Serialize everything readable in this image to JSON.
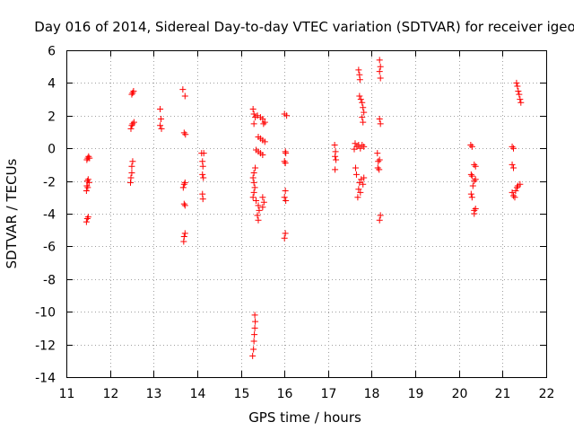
{
  "chart_data": {
    "type": "scatter",
    "title": "Day 016 of 2014, Sidereal Day-to-day VTEC variation (SDTVAR) for receiver igeo",
    "xlabel": "GPS time / hours",
    "ylabel": "SDTVAR / TECUs",
    "xlim": [
      11,
      22
    ],
    "ylim": [
      -14,
      6
    ],
    "xticks": [
      11,
      12,
      13,
      14,
      15,
      16,
      17,
      18,
      19,
      20,
      21,
      22
    ],
    "yticks": [
      -14,
      -12,
      -10,
      -8,
      -6,
      -4,
      -2,
      0,
      2,
      4,
      6
    ],
    "grid": true,
    "marker": "plus",
    "color": "#ff0000",
    "series": [
      {
        "name": "SDTVAR",
        "points": [
          [
            11.47,
            -0.7
          ],
          [
            11.49,
            -0.6
          ],
          [
            11.51,
            -0.5
          ],
          [
            11.53,
            -0.6
          ],
          [
            11.48,
            -2.0
          ],
          [
            11.5,
            -1.9
          ],
          [
            11.52,
            -2.1
          ],
          [
            11.47,
            -2.3
          ],
          [
            11.49,
            -2.4
          ],
          [
            11.46,
            -2.6
          ],
          [
            11.48,
            -4.3
          ],
          [
            11.5,
            -4.2
          ],
          [
            11.46,
            -4.5
          ],
          [
            12.5,
            3.3
          ],
          [
            12.52,
            3.4
          ],
          [
            12.54,
            3.5
          ],
          [
            12.5,
            1.4
          ],
          [
            12.52,
            1.5
          ],
          [
            12.55,
            1.6
          ],
          [
            12.48,
            1.2
          ],
          [
            12.52,
            -0.8
          ],
          [
            12.5,
            -1.1
          ],
          [
            12.5,
            -1.5
          ],
          [
            12.48,
            -1.8
          ],
          [
            12.47,
            -2.1
          ],
          [
            13.15,
            2.4
          ],
          [
            13.17,
            1.8
          ],
          [
            13.15,
            1.4
          ],
          [
            13.18,
            1.2
          ],
          [
            13.67,
            3.6
          ],
          [
            13.72,
            3.2
          ],
          [
            13.7,
            0.95
          ],
          [
            13.73,
            0.85
          ],
          [
            13.7,
            -2.2
          ],
          [
            13.72,
            -2.1
          ],
          [
            13.68,
            -2.4
          ],
          [
            13.7,
            -3.4
          ],
          [
            13.72,
            -3.5
          ],
          [
            13.72,
            -5.2
          ],
          [
            13.7,
            -5.4
          ],
          [
            13.69,
            -5.7
          ],
          [
            14.1,
            -0.3
          ],
          [
            14.15,
            -0.3
          ],
          [
            14.12,
            -0.8
          ],
          [
            14.13,
            -1.1
          ],
          [
            14.12,
            -1.6
          ],
          [
            14.14,
            -1.8
          ],
          [
            14.12,
            -2.8
          ],
          [
            14.13,
            -3.1
          ],
          [
            15.28,
            2.4
          ],
          [
            15.3,
            2.1
          ],
          [
            15.33,
            1.9
          ],
          [
            15.38,
            2.0
          ],
          [
            15.45,
            1.9
          ],
          [
            15.5,
            1.8
          ],
          [
            15.55,
            1.6
          ],
          [
            15.52,
            1.5
          ],
          [
            15.3,
            1.5
          ],
          [
            15.4,
            0.7
          ],
          [
            15.45,
            0.6
          ],
          [
            15.5,
            0.5
          ],
          [
            15.55,
            0.4
          ],
          [
            15.35,
            -0.1
          ],
          [
            15.4,
            -0.2
          ],
          [
            15.45,
            -0.3
          ],
          [
            15.5,
            -0.4
          ],
          [
            15.33,
            -1.2
          ],
          [
            15.3,
            -1.5
          ],
          [
            15.28,
            -1.8
          ],
          [
            15.3,
            -2.1
          ],
          [
            15.32,
            -2.4
          ],
          [
            15.3,
            -2.7
          ],
          [
            15.28,
            -3.0
          ],
          [
            15.35,
            -3.2
          ],
          [
            15.4,
            -3.5
          ],
          [
            15.42,
            -3.8
          ],
          [
            15.38,
            -4.1
          ],
          [
            15.4,
            -4.4
          ],
          [
            15.5,
            -3.6
          ],
          [
            15.53,
            -3.3
          ],
          [
            15.5,
            -3.0
          ],
          [
            15.32,
            -10.2
          ],
          [
            15.33,
            -10.6
          ],
          [
            15.32,
            -11.0
          ],
          [
            15.31,
            -11.4
          ],
          [
            15.3,
            -11.8
          ],
          [
            15.29,
            -12.3
          ],
          [
            15.27,
            -12.7
          ],
          [
            16.0,
            2.1
          ],
          [
            16.05,
            2.0
          ],
          [
            16.02,
            -0.2
          ],
          [
            16.03,
            -0.3
          ],
          [
            16.0,
            -0.8
          ],
          [
            16.02,
            -0.9
          ],
          [
            16.02,
            -2.6
          ],
          [
            16.0,
            -3.0
          ],
          [
            16.03,
            -3.2
          ],
          [
            16.02,
            -5.2
          ],
          [
            16.0,
            -5.5
          ],
          [
            17.15,
            0.2
          ],
          [
            17.17,
            -0.2
          ],
          [
            17.16,
            -0.5
          ],
          [
            17.18,
            -0.7
          ],
          [
            17.16,
            -1.3
          ],
          [
            17.7,
            4.8
          ],
          [
            17.72,
            4.5
          ],
          [
            17.73,
            4.2
          ],
          [
            17.72,
            3.2
          ],
          [
            17.75,
            3.0
          ],
          [
            17.78,
            2.8
          ],
          [
            17.8,
            2.5
          ],
          [
            17.82,
            2.2
          ],
          [
            17.78,
            1.9
          ],
          [
            17.8,
            1.6
          ],
          [
            17.62,
            0.3
          ],
          [
            17.66,
            0.1
          ],
          [
            17.7,
            0.2
          ],
          [
            17.74,
            0.0
          ],
          [
            17.78,
            0.2
          ],
          [
            17.82,
            0.1
          ],
          [
            17.6,
            -0.05
          ],
          [
            17.63,
            -1.2
          ],
          [
            17.65,
            -1.6
          ],
          [
            17.72,
            -2.1
          ],
          [
            17.76,
            -1.9
          ],
          [
            17.8,
            -2.2
          ],
          [
            17.82,
            -1.8
          ],
          [
            17.7,
            -2.5
          ],
          [
            17.74,
            -2.7
          ],
          [
            17.68,
            -3.0
          ],
          [
            18.18,
            5.4
          ],
          [
            18.2,
            5.0
          ],
          [
            18.18,
            4.7
          ],
          [
            18.2,
            4.3
          ],
          [
            18.18,
            1.8
          ],
          [
            18.2,
            1.5
          ],
          [
            18.13,
            -0.3
          ],
          [
            18.15,
            -0.8
          ],
          [
            18.18,
            -0.7
          ],
          [
            18.14,
            -1.2
          ],
          [
            18.17,
            -1.3
          ],
          [
            18.2,
            -4.1
          ],
          [
            18.18,
            -4.4
          ],
          [
            20.27,
            0.2
          ],
          [
            20.3,
            0.1
          ],
          [
            20.28,
            -1.6
          ],
          [
            20.3,
            -1.7
          ],
          [
            20.35,
            -1.0
          ],
          [
            20.38,
            -1.1
          ],
          [
            20.35,
            -2.0
          ],
          [
            20.38,
            -1.9
          ],
          [
            20.32,
            -2.3
          ],
          [
            20.28,
            -2.8
          ],
          [
            20.3,
            -3.0
          ],
          [
            20.35,
            -3.8
          ],
          [
            20.38,
            -3.7
          ],
          [
            20.35,
            -4.0
          ],
          [
            21.22,
            0.1
          ],
          [
            21.25,
            0.0
          ],
          [
            21.22,
            -1.0
          ],
          [
            21.25,
            -1.2
          ],
          [
            21.22,
            -2.7
          ],
          [
            21.25,
            -2.9
          ],
          [
            21.28,
            -3.0
          ],
          [
            21.3,
            -2.6
          ],
          [
            21.35,
            -2.3
          ],
          [
            21.4,
            -2.2
          ],
          [
            21.33,
            -2.4
          ],
          [
            21.32,
            4.0
          ],
          [
            21.34,
            3.8
          ],
          [
            21.36,
            3.5
          ],
          [
            21.38,
            3.3
          ],
          [
            21.4,
            3.0
          ],
          [
            21.42,
            2.8
          ]
        ]
      }
    ]
  }
}
